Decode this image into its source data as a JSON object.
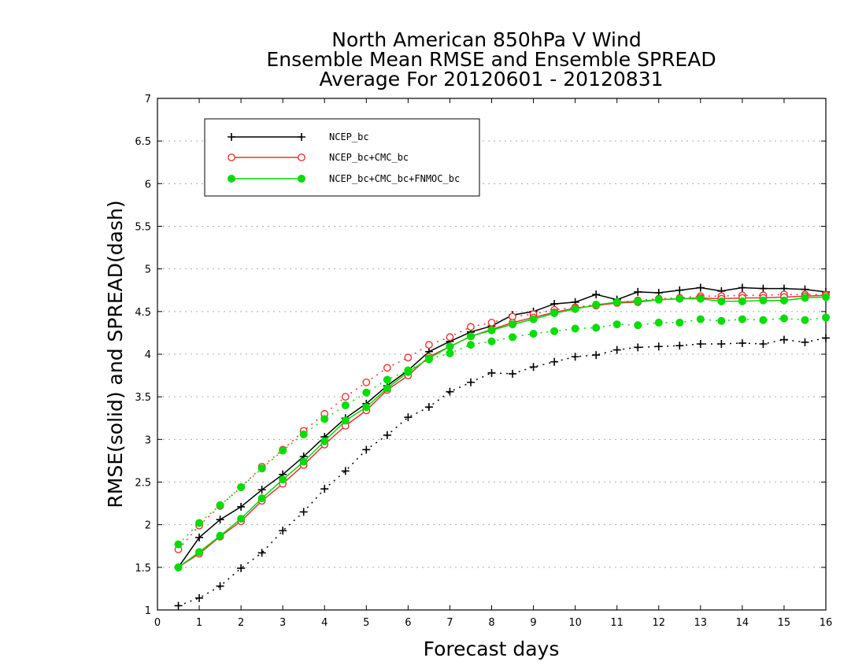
{
  "chart_data": {
    "type": "line",
    "title": [
      "North American 850hPa V Wind",
      "Ensemble Mean RMSE and Ensemble SPREAD",
      "Average For 20120601 - 20120831"
    ],
    "xlabel": "Forecast days",
    "ylabel": "RMSE(solid) and SPREAD(dash)",
    "xlim": [
      0,
      16
    ],
    "ylim": [
      1,
      7
    ],
    "xticks": [
      "0",
      "1",
      "2",
      "3",
      "4",
      "5",
      "6",
      "7",
      "8",
      "9",
      "10",
      "11",
      "12",
      "13",
      "14",
      "15",
      "16"
    ],
    "yticks": [
      "1",
      "1.5",
      "2",
      "2.5",
      "3",
      "3.5",
      "4",
      "4.5",
      "5",
      "5.5",
      "6",
      "6.5",
      "7"
    ],
    "grid": "horizontal dotted",
    "legend_position": "top-left",
    "x": [
      0.5,
      1,
      1.5,
      2,
      2.5,
      3,
      3.5,
      4,
      4.5,
      5,
      5.5,
      6,
      6.5,
      7,
      7.5,
      8,
      8.5,
      9,
      9.5,
      10,
      10.5,
      11,
      11.5,
      12,
      12.5,
      13,
      13.5,
      14,
      14.5,
      15,
      15.5,
      16
    ],
    "series": [
      {
        "name": "NCEP_bc",
        "color": "#000000",
        "marker": "plus",
        "rmse": [
          1.5,
          1.85,
          2.06,
          2.21,
          2.41,
          2.59,
          2.8,
          3.03,
          3.25,
          3.42,
          3.63,
          3.81,
          4.03,
          4.15,
          4.26,
          4.33,
          4.46,
          4.5,
          4.59,
          4.61,
          4.7,
          4.64,
          4.73,
          4.72,
          4.75,
          4.78,
          4.74,
          4.78,
          4.77,
          4.77,
          4.76,
          4.73
        ],
        "spread": [
          1.05,
          1.14,
          1.28,
          1.49,
          1.67,
          1.93,
          2.15,
          2.42,
          2.63,
          2.88,
          3.05,
          3.26,
          3.38,
          3.56,
          3.67,
          3.78,
          3.77,
          3.85,
          3.91,
          3.97,
          3.99,
          4.05,
          4.08,
          4.09,
          4.1,
          4.12,
          4.12,
          4.13,
          4.12,
          4.17,
          4.14,
          4.19
        ]
      },
      {
        "name": "NCEP_bc+CMC_bc",
        "color": "#ee3333",
        "marker": "open-circle",
        "rmse": [
          1.5,
          1.66,
          1.86,
          2.04,
          2.28,
          2.48,
          2.7,
          2.94,
          3.16,
          3.34,
          3.58,
          3.75,
          3.97,
          4.09,
          4.21,
          4.29,
          4.37,
          4.43,
          4.49,
          4.54,
          4.57,
          4.6,
          4.61,
          4.64,
          4.65,
          4.66,
          4.65,
          4.66,
          4.66,
          4.67,
          4.68,
          4.69
        ],
        "spread": [
          1.71,
          1.99,
          2.22,
          2.44,
          2.68,
          2.88,
          3.1,
          3.3,
          3.5,
          3.67,
          3.84,
          3.96,
          4.11,
          4.2,
          4.32,
          4.37,
          4.44,
          4.47,
          4.52,
          4.55,
          4.58,
          4.61,
          4.63,
          4.65,
          4.66,
          4.68,
          4.68,
          4.69,
          4.69,
          4.7,
          4.7,
          4.7
        ]
      },
      {
        "name": "NCEP_bc+CMC_bc+FNMOC_bc",
        "color": "#00dd00",
        "marker": "filled-circle",
        "rmse": [
          1.5,
          1.68,
          1.87,
          2.07,
          2.31,
          2.53,
          2.74,
          2.98,
          3.22,
          3.38,
          3.6,
          3.79,
          3.95,
          4.09,
          4.21,
          4.28,
          4.35,
          4.41,
          4.48,
          4.53,
          4.58,
          4.61,
          4.62,
          4.64,
          4.65,
          4.65,
          4.62,
          4.62,
          4.63,
          4.63,
          4.66,
          4.67
        ],
        "spread": [
          1.77,
          2.02,
          2.23,
          2.44,
          2.66,
          2.87,
          3.06,
          3.24,
          3.4,
          3.55,
          3.7,
          3.81,
          3.94,
          4.01,
          4.11,
          4.15,
          4.2,
          4.24,
          4.27,
          4.3,
          4.31,
          4.35,
          4.34,
          4.37,
          4.37,
          4.41,
          4.39,
          4.41,
          4.4,
          4.42,
          4.4,
          4.43
        ]
      }
    ]
  }
}
